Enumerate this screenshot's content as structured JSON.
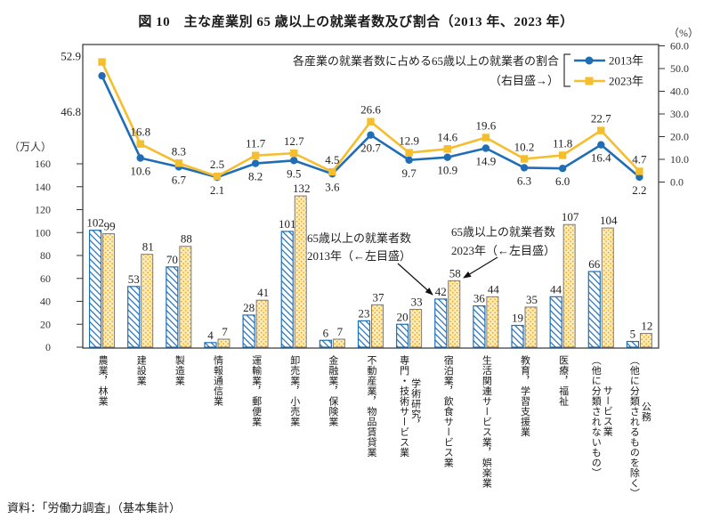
{
  "title": "図 10　主な産業別 65 歳以上の就業者数及び割合（2013 年、2023 年）",
  "source": "資料：「労働力調査」（基本集計）",
  "chart_data": {
    "type": "combo: grouped bars (left axis) + lines (right axis)",
    "categories": [
      {
        "parts": [
          "農業，林業"
        ]
      },
      {
        "parts": [
          "建設業"
        ]
      },
      {
        "parts": [
          "製造業"
        ]
      },
      {
        "parts": [
          "情報通信業"
        ]
      },
      {
        "parts": [
          "運輸業，郵便業"
        ]
      },
      {
        "parts": [
          "卸売業，小売業"
        ]
      },
      {
        "parts": [
          "金融業，保険業"
        ]
      },
      {
        "parts": [
          "不動産業，物品賃貸業"
        ]
      },
      {
        "parts": [
          "学術研究，",
          "専門・技術サービス業"
        ]
      },
      {
        "parts": [
          "宿泊業，飲食サービス業"
        ]
      },
      {
        "parts": [
          "生活関連サービス業，娯楽業"
        ]
      },
      {
        "parts": [
          "教育，学習支援業"
        ]
      },
      {
        "parts": [
          "医療，福祉"
        ]
      },
      {
        "parts": [
          "サービス業",
          "（他に分類されないもの）"
        ]
      },
      {
        "parts": [
          "公務",
          "（他に分類されるものを除く）"
        ]
      }
    ],
    "bar_series": [
      {
        "name": "65歳以上の就業者数 2013年（←左目盛）",
        "style": "blue-hatch",
        "color": "#1f6eb5",
        "values": [
          102,
          53,
          70,
          4,
          28,
          101,
          6,
          23,
          20,
          42,
          36,
          19,
          44,
          66,
          5
        ]
      },
      {
        "name": "65歳以上の就業者数 2023年（←左目盛）",
        "style": "yellow-dots",
        "color": "#f2b52f",
        "values": [
          99,
          81,
          88,
          7,
          41,
          132,
          7,
          37,
          33,
          58,
          44,
          35,
          107,
          104,
          12
        ]
      }
    ],
    "line_series": [
      {
        "name": "2013年",
        "marker": "circle",
        "color": "#1f6eb5",
        "values": [
          46.8,
          10.6,
          6.7,
          2.1,
          8.2,
          9.5,
          3.6,
          20.7,
          9.7,
          10.9,
          14.9,
          6.3,
          6.0,
          16.4,
          2.2
        ]
      },
      {
        "name": "2023年",
        "marker": "square",
        "color": "#f5be2e",
        "values": [
          52.9,
          16.8,
          8.3,
          2.5,
          11.7,
          12.7,
          4.5,
          26.6,
          12.9,
          14.6,
          19.6,
          10.2,
          11.8,
          22.7,
          4.7
        ]
      }
    ],
    "left_axis": {
      "label": "（万人）",
      "min": 0,
      "max": 160,
      "step": 20
    },
    "right_axis": {
      "label": "（%）",
      "min": 0,
      "max": 60,
      "step": 10,
      "tick_format": "0.0"
    },
    "legend": {
      "title_line1": "各産業の就業者数に占める65歳以上の就業者の割合",
      "title_line2": "（右目盛→）",
      "entries": [
        "2013年",
        "2023年"
      ]
    },
    "annotations": [
      {
        "lines": [
          "65歳以上の就業者数",
          "2013年（←左目盛）"
        ],
        "target_category_index": 9,
        "target_series": 0
      },
      {
        "lines": [
          "65歳以上の就業者数",
          "2023年（←左目盛）"
        ],
        "target_category_index": 9,
        "target_series": 1
      }
    ]
  }
}
